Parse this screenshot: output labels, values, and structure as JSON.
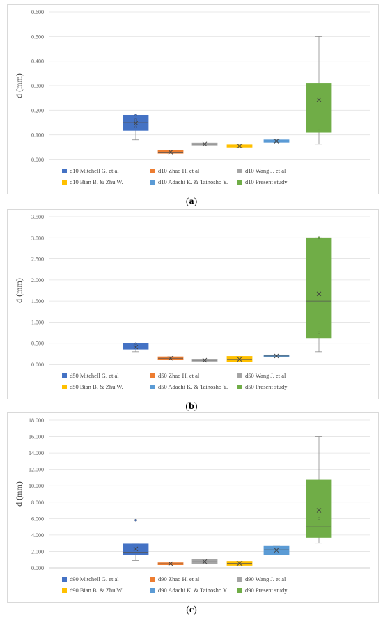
{
  "chart_data": [
    {
      "type": "box",
      "panel_label": "a",
      "ylabel": "d (mm)",
      "ylim": [
        0,
        0.6
      ],
      "yticks": [
        "0.000",
        "0.100",
        "0.200",
        "0.300",
        "0.400",
        "0.500",
        "0.600"
      ],
      "series": [
        {
          "name": "d10 Mitchell G. et al",
          "color": "#4472c4",
          "min": 0.08,
          "q1": 0.118,
          "median": 0.15,
          "q3": 0.18,
          "max": 0.18,
          "mean": 0.148,
          "points": [
            0.132,
            0.162,
            0.18
          ]
        },
        {
          "name": "d10 Zhao H. et al",
          "color": "#ed7d31",
          "min": 0.025,
          "q1": 0.025,
          "median": 0.03,
          "q3": 0.036,
          "max": 0.036,
          "mean": 0.03,
          "points": []
        },
        {
          "name": "d10 Wang J. et al",
          "color": "#a5a5a5",
          "min": 0.063,
          "q1": 0.063,
          "median": 0.063,
          "q3": 0.063,
          "max": 0.063,
          "mean": 0.063,
          "points": []
        },
        {
          "name": "d10 Bian B. & Zhu W.",
          "color": "#ffc000",
          "min": 0.05,
          "q1": 0.05,
          "median": 0.055,
          "q3": 0.06,
          "max": 0.06,
          "mean": 0.055,
          "points": []
        },
        {
          "name": "d10 Adachi K. & Tainosho Y.",
          "color": "#5b9bd5",
          "min": 0.07,
          "q1": 0.07,
          "median": 0.075,
          "q3": 0.08,
          "max": 0.08,
          "mean": 0.075,
          "points": []
        },
        {
          "name": "d10 Present study",
          "color": "#70ad47",
          "min": 0.063,
          "q1": 0.11,
          "median": 0.25,
          "q3": 0.31,
          "max": 0.5,
          "mean": 0.243,
          "points": [
            0.125
          ]
        }
      ]
    },
    {
      "type": "box",
      "panel_label": "b",
      "ylabel": "d (mm)",
      "ylim": [
        0,
        3.5
      ],
      "yticks": [
        "0.000",
        "0.500",
        "1.000",
        "1.500",
        "2.000",
        "2.500",
        "3.000",
        "3.500"
      ],
      "series": [
        {
          "name": "d50 Mitchell G. et al",
          "color": "#4472c4",
          "min": 0.3,
          "q1": 0.36,
          "median": 0.44,
          "q3": 0.49,
          "max": 0.49,
          "mean": 0.41,
          "points": [
            0.49
          ]
        },
        {
          "name": "d50 Zhao H. et al",
          "color": "#ed7d31",
          "min": 0.11,
          "q1": 0.11,
          "median": 0.145,
          "q3": 0.18,
          "max": 0.18,
          "mean": 0.145,
          "points": []
        },
        {
          "name": "d50 Wang J. et al",
          "color": "#a5a5a5",
          "min": 0.08,
          "q1": 0.08,
          "median": 0.1,
          "q3": 0.12,
          "max": 0.12,
          "mean": 0.1,
          "points": []
        },
        {
          "name": "d50 Bian B. & Zhu W.",
          "color": "#ffc000",
          "min": 0.07,
          "q1": 0.07,
          "median": 0.12,
          "q3": 0.19,
          "max": 0.19,
          "mean": 0.12,
          "points": []
        },
        {
          "name": "d50 Adachi K. & Tainosho Y.",
          "color": "#5b9bd5",
          "min": 0.2,
          "q1": 0.2,
          "median": 0.2,
          "q3": 0.2,
          "max": 0.2,
          "mean": 0.2,
          "points": []
        },
        {
          "name": "d50 Present study",
          "color": "#70ad47",
          "min": 0.3,
          "q1": 0.63,
          "median": 1.5,
          "q3": 3.0,
          "max": 3.0,
          "mean": 1.67,
          "points": [
            0.75,
            3.0
          ]
        }
      ]
    },
    {
      "type": "box",
      "panel_label": "c",
      "ylabel": "d (mm)",
      "ylim": [
        0,
        18
      ],
      "yticks": [
        "0.000",
        "2.000",
        "4.000",
        "6.000",
        "8.000",
        "10.000",
        "12.000",
        "14.000",
        "16.000",
        "18.000"
      ],
      "series": [
        {
          "name": "d90 Mitchell G. et al",
          "color": "#4472c4",
          "min": 0.9,
          "q1": 1.6,
          "median": 1.9,
          "q3": 2.9,
          "max": 2.9,
          "mean": 2.3,
          "points": [
            5.8
          ]
        },
        {
          "name": "d90 Zhao H. et al",
          "color": "#ed7d31",
          "min": 0.5,
          "q1": 0.5,
          "median": 0.5,
          "q3": 0.5,
          "max": 0.5,
          "mean": 0.5,
          "points": []
        },
        {
          "name": "d90 Wang J. et al",
          "color": "#a5a5a5",
          "min": 0.5,
          "q1": 0.5,
          "median": 0.75,
          "q3": 1.0,
          "max": 1.0,
          "mean": 0.75,
          "points": []
        },
        {
          "name": "d90 Bian B. & Zhu W.",
          "color": "#ffc000",
          "min": 0.3,
          "q1": 0.3,
          "median": 0.55,
          "q3": 0.8,
          "max": 0.8,
          "mean": 0.55,
          "points": []
        },
        {
          "name": "d90 Adachi K. & Tainosho Y.",
          "color": "#5b9bd5",
          "min": 1.6,
          "q1": 1.6,
          "median": 2.2,
          "q3": 2.7,
          "max": 2.7,
          "mean": 2.15,
          "points": []
        },
        {
          "name": "d90 Present study",
          "color": "#70ad47",
          "min": 3.0,
          "q1": 3.7,
          "median": 5.0,
          "q3": 10.7,
          "max": 16.0,
          "mean": 7.0,
          "points": [
            6.0,
            9.0
          ]
        }
      ]
    }
  ]
}
